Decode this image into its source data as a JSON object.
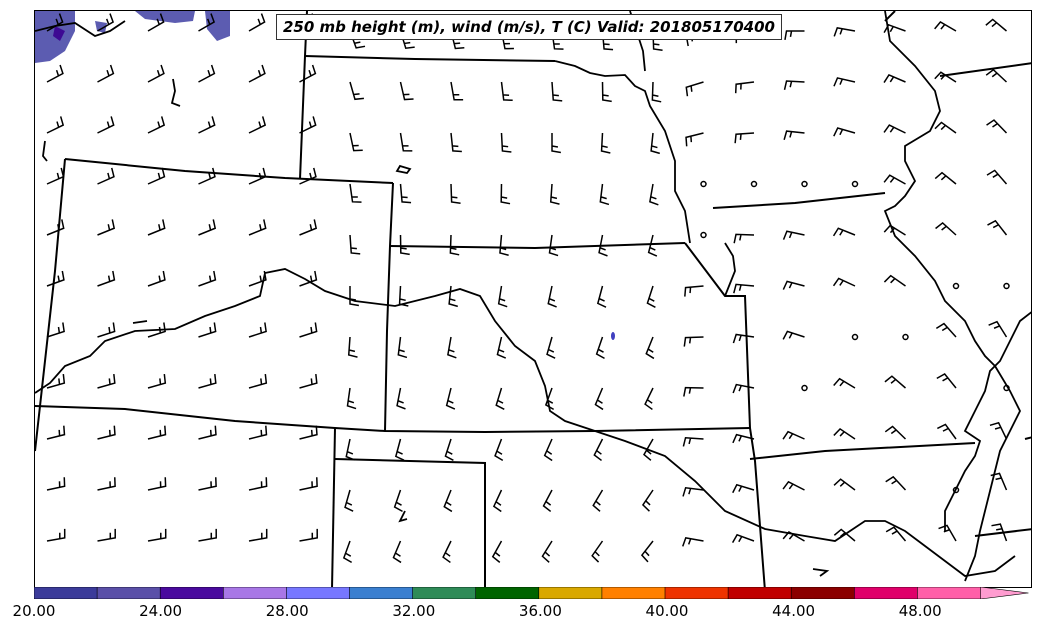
{
  "title": "250 mb height (m), wind (m/s), T (C) Valid: 201805170400",
  "colorbar": {
    "tick_labels": [
      "20.00",
      "24.00",
      "28.00",
      "32.00",
      "36.00",
      "40.00",
      "44.00",
      "48.00"
    ],
    "colors": [
      "#3b3b9a",
      "#5a4fa8",
      "#4a0a9e",
      "#a877e6",
      "#7777ff",
      "#3a7fd0",
      "#2e8b57",
      "#006400",
      "#d9a800",
      "#ff8000",
      "#ee3300",
      "#c00000",
      "#8b0000",
      "#e0006a",
      "#ff5fa8",
      "#ff9cd0"
    ],
    "extend": "max"
  },
  "legend_placement": "bottom",
  "map": {
    "region": "Central United States",
    "features": [
      "state-borders",
      "river-coastlines",
      "wind-barbs",
      "calm-circles",
      "temperature-shading"
    ]
  }
}
